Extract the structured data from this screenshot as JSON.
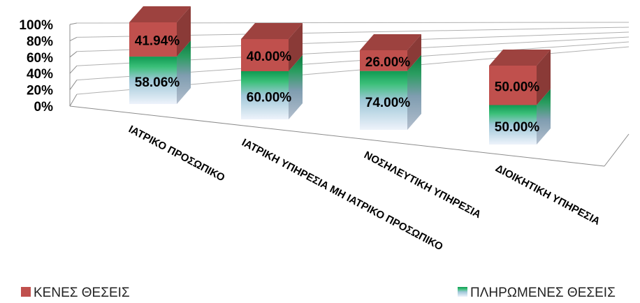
{
  "chart_data": {
    "type": "bar",
    "stacked": true,
    "percent": true,
    "three_d": true,
    "title": "",
    "xlabel": "",
    "ylabel": "",
    "ylim": [
      0,
      100
    ],
    "yticks": [
      "0%",
      "20%",
      "40%",
      "60%",
      "80%",
      "100%"
    ],
    "categories": [
      "ΙΑΤΡΙΚΟ ΠΡΟΣΩΠΙΚΟ",
      "ΙΑΤΡΙΚΗ ΥΠΗΡΕΣΙΑ ΜΗ ΙΑΤΡΙΚΟ ΠΡΟΣΩΠΙΚΟ",
      "ΝΟΣΗΛΕΥΤΙΚΗ ΥΠΗΡΕΣΙΑ",
      "ΔΙΟΙΚΗΤΙΚΗ ΥΠΗΡΕΣΙΑ"
    ],
    "series": [
      {
        "name": "ΠΛΗΡΩΜΕΝΕΣ ΘΕΣΕΙΣ",
        "values": [
          58.06,
          60.0,
          74.0,
          50.0
        ],
        "labels": [
          "58.06%",
          "60.00%",
          "74.00%",
          "50.00%"
        ],
        "color": "#21a65a"
      },
      {
        "name": "ΚΕΝΕΣ ΘΕΣΕΙΣ",
        "values": [
          41.94,
          40.0,
          26.0,
          50.0
        ],
        "labels": [
          "41.94%",
          "40.00%",
          "26.00%",
          "50.00%"
        ],
        "color": "#c0504d"
      }
    ],
    "legend": "bottom",
    "grid": true
  }
}
